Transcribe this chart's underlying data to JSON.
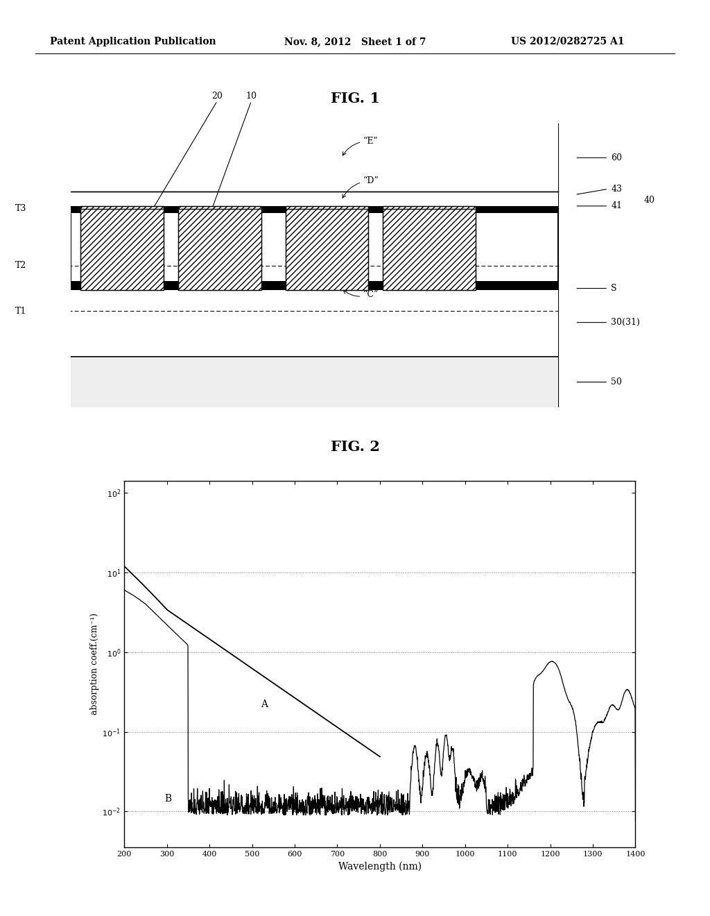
{
  "fig1_title": "FIG. 1",
  "fig2_title": "FIG. 2",
  "header_left": "Patent Application Publication",
  "header_center": "Nov. 8, 2012   Sheet 1 of 7",
  "header_right": "US 2012/0282725 A1",
  "background_color": "#ffffff",
  "xlabel": "Wavelength (nm)",
  "ylabel": "absorption coeff.(cm⁻¹)",
  "xmin": 200,
  "xmax": 1400,
  "xticks": [
    200,
    300,
    400,
    500,
    600,
    700,
    800,
    900,
    1000,
    1100,
    1200,
    1300,
    1400
  ]
}
